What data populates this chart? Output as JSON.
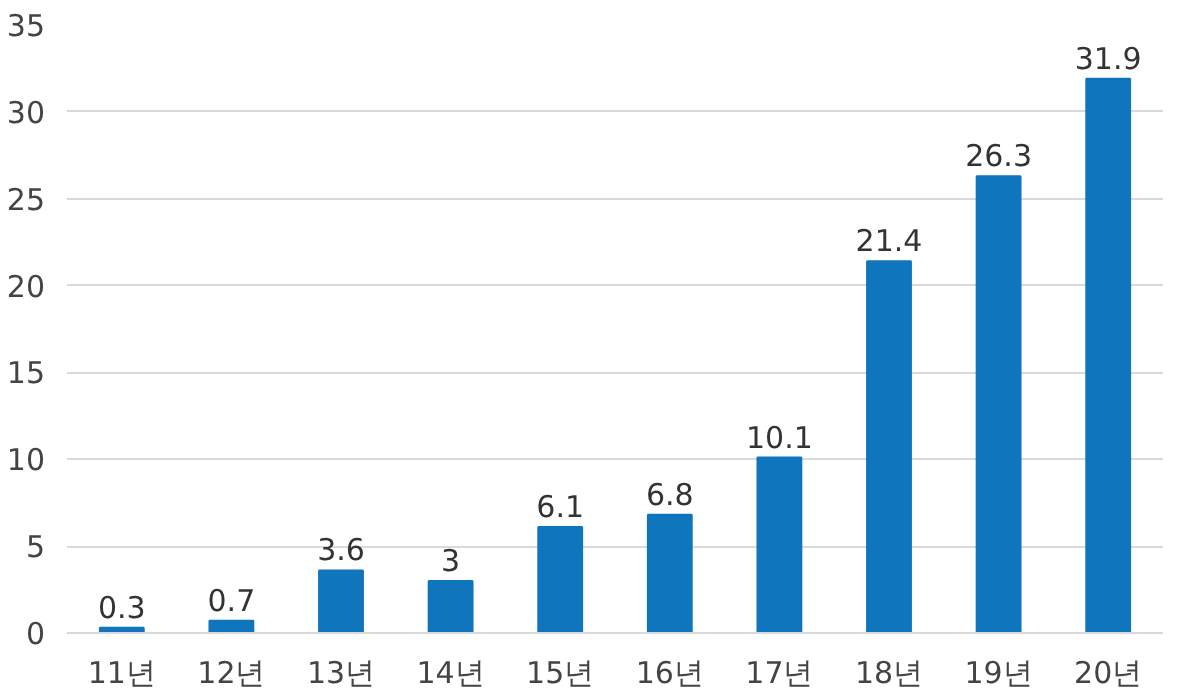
{
  "chart_data": {
    "type": "bar",
    "categories": [
      "11년",
      "12년",
      "13년",
      "14년",
      "15년",
      "16년",
      "17년",
      "18년",
      "19년",
      "20년"
    ],
    "values": [
      0.3,
      0.7,
      3.6,
      3,
      6.1,
      6.8,
      10.1,
      21.4,
      26.3,
      31.9
    ],
    "color": "#0f75bc",
    "ylim": [
      0,
      35
    ],
    "yticks": [
      0,
      5,
      10,
      15,
      20,
      25,
      30,
      35
    ],
    "grid": "y",
    "data_labels": true
  }
}
